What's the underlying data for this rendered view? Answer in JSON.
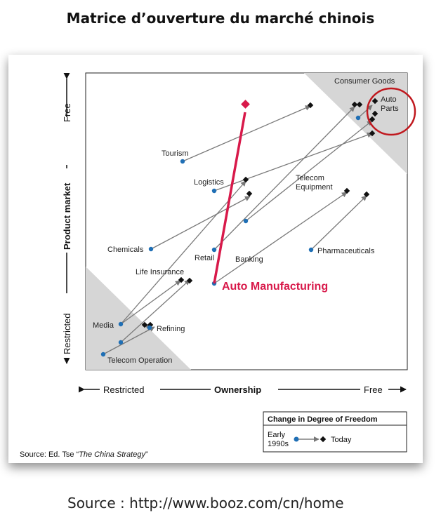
{
  "title": "Matrice d’ouverture du marché chinois",
  "y_axis": {
    "low": "Restricted",
    "label": "Product market",
    "high": "Free"
  },
  "x_axis": {
    "low": "Restricted",
    "label": "Ownership",
    "high": "Free"
  },
  "highlight_label": "Auto Manufacturing",
  "sectors": [
    {
      "label": "Consumer Goods"
    },
    {
      "label": "Auto"
    },
    {
      "label": "Parts"
    },
    {
      "label": "Tourism"
    },
    {
      "label": "Logistics"
    },
    {
      "label": "Telecom"
    },
    {
      "label": "Equipment"
    },
    {
      "label": "Chemicals"
    },
    {
      "label": "Retail"
    },
    {
      "label": "Banking"
    },
    {
      "label": "Pharmaceuticals"
    },
    {
      "label": "Life Insurance"
    },
    {
      "label": "Media"
    },
    {
      "label": "Refining"
    },
    {
      "label": "Telecom Operation"
    }
  ],
  "legend": {
    "title": "Change in Degree of Freedom",
    "from_line1": "Early",
    "from_line2": "1990s",
    "to": "Today"
  },
  "source_inner": {
    "prefix": "Source:   Ed. Tse “",
    "work": "The China Strategy",
    "suffix": "”"
  },
  "source_outer": "Source : http://www.booz.com/cn/home",
  "colors": {
    "highlight": "#d8194a",
    "early_dot": "#1f6fb5",
    "today_marker": "#111111",
    "zone": "#d6d6d6",
    "circle": "#c0181e"
  }
}
